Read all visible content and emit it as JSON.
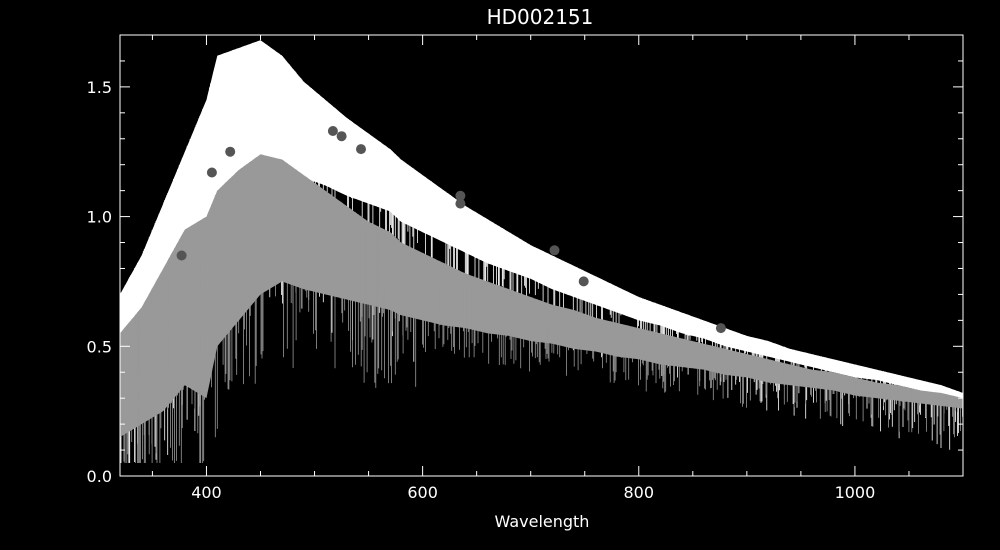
{
  "chart_data": {
    "type": "line",
    "title": "HD002151",
    "xlabel": "Wavelength",
    "ylabel": "",
    "xlim": [
      320,
      1100
    ],
    "ylim": [
      0.0,
      1.7
    ],
    "x_ticks": [
      400,
      600,
      800,
      1000
    ],
    "x_tick_labels": [
      "400",
      "600",
      "800",
      "1000"
    ],
    "y_ticks": [
      0.0,
      0.5,
      1.0,
      1.5
    ],
    "y_tick_labels": [
      "0.0",
      "0.5",
      "1.0",
      "1.5"
    ],
    "grid": false,
    "legend": "none",
    "series": [
      {
        "color": "#ffffff",
        "style": "spectrum",
        "x": [
          320,
          340,
          360,
          380,
          400,
          410,
          430,
          450,
          470,
          490,
          510,
          530,
          550,
          570,
          580,
          600,
          620,
          640,
          660,
          680,
          700,
          720,
          740,
          760,
          780,
          800,
          820,
          840,
          860,
          880,
          900,
          920,
          940,
          960,
          980,
          1000,
          1020,
          1040,
          1060,
          1080,
          1100
        ],
        "upper": [
          0.7,
          0.85,
          1.05,
          1.25,
          1.45,
          1.62,
          1.65,
          1.68,
          1.62,
          1.52,
          1.45,
          1.38,
          1.32,
          1.26,
          1.22,
          1.16,
          1.1,
          1.04,
          0.99,
          0.94,
          0.89,
          0.85,
          0.81,
          0.77,
          0.73,
          0.69,
          0.66,
          0.63,
          0.6,
          0.57,
          0.54,
          0.52,
          0.49,
          0.47,
          0.45,
          0.43,
          0.41,
          0.39,
          0.37,
          0.35,
          0.32
        ],
        "lower": [
          0.25,
          0.35,
          0.5,
          0.65,
          0.75,
          1.05,
          1.15,
          1.22,
          1.2,
          1.15,
          1.12,
          1.08,
          1.05,
          1.02,
          0.98,
          0.94,
          0.9,
          0.86,
          0.82,
          0.79,
          0.76,
          0.72,
          0.69,
          0.66,
          0.63,
          0.6,
          0.58,
          0.55,
          0.53,
          0.5,
          0.48,
          0.46,
          0.44,
          0.42,
          0.4,
          0.38,
          0.37,
          0.35,
          0.33,
          0.31,
          0.29
        ]
      },
      {
        "color": "#999999",
        "style": "spectrum",
        "x": [
          320,
          340,
          360,
          380,
          400,
          410,
          430,
          450,
          470,
          490,
          510,
          530,
          550,
          570,
          580,
          600,
          620,
          640,
          660,
          680,
          700,
          720,
          740,
          760,
          780,
          800,
          820,
          840,
          860,
          880,
          900,
          920,
          940,
          960,
          980,
          1000,
          1020,
          1040,
          1060,
          1080,
          1100
        ],
        "upper": [
          0.55,
          0.65,
          0.8,
          0.95,
          1.0,
          1.1,
          1.18,
          1.24,
          1.22,
          1.16,
          1.1,
          1.04,
          0.98,
          0.94,
          0.9,
          0.86,
          0.82,
          0.78,
          0.75,
          0.72,
          0.69,
          0.66,
          0.64,
          0.61,
          0.59,
          0.57,
          0.55,
          0.53,
          0.51,
          0.49,
          0.47,
          0.45,
          0.43,
          0.41,
          0.4,
          0.38,
          0.36,
          0.35,
          0.33,
          0.32,
          0.3
        ],
        "lower": [
          0.15,
          0.2,
          0.25,
          0.35,
          0.3,
          0.5,
          0.6,
          0.7,
          0.75,
          0.72,
          0.7,
          0.68,
          0.66,
          0.64,
          0.62,
          0.6,
          0.58,
          0.57,
          0.55,
          0.54,
          0.52,
          0.51,
          0.49,
          0.48,
          0.46,
          0.45,
          0.43,
          0.42,
          0.41,
          0.39,
          0.38,
          0.36,
          0.35,
          0.34,
          0.33,
          0.31,
          0.3,
          0.29,
          0.28,
          0.27,
          0.26
        ]
      },
      {
        "color": "#555555",
        "style": "points",
        "x": [
          377,
          405,
          422,
          517,
          525,
          543,
          635,
          635,
          722,
          749,
          876
        ],
        "y": [
          0.85,
          1.17,
          1.25,
          1.33,
          1.31,
          1.26,
          1.08,
          1.05,
          0.87,
          0.75,
          0.57
        ]
      }
    ]
  }
}
